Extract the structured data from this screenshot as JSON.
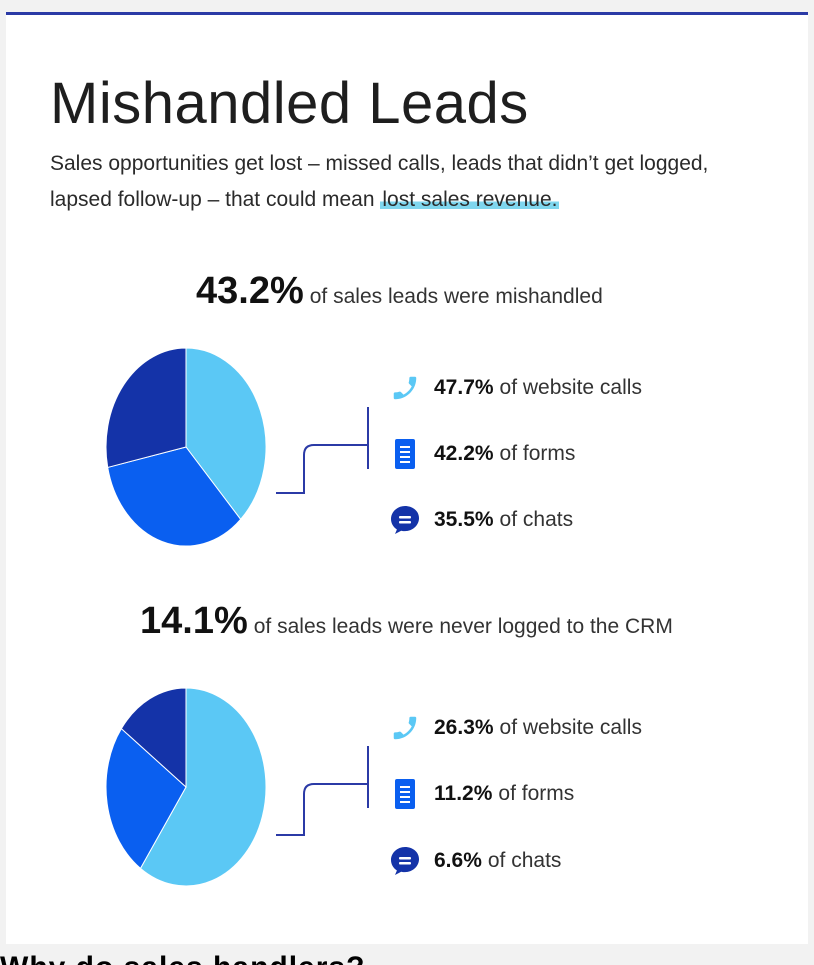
{
  "page": {
    "title": "Mishandled Leads",
    "subtitle_prefix": "Sales opportunities get lost – missed calls, leads that didn’t get logged, lapsed follow-up – that could mean ",
    "subtitle_highlight": "lost sales revenue.",
    "caption": "Why do sales handlers?",
    "colors": {
      "light_blue": "#5bc8f5",
      "mid_blue": "#0a5ff0",
      "dark_blue": "#1433a8",
      "accent_line": "#2b3aa6",
      "highlight": "#7fd6ee"
    }
  },
  "chart_data": [
    {
      "type": "pie",
      "headline_value": "43.2%",
      "headline_text": "of sales leads were mishandled",
      "slices": [
        {
          "value": 47.7,
          "color": "#5bc8f5"
        },
        {
          "value": 42.2,
          "color": "#0a5ff0"
        },
        {
          "value": 35.5,
          "color": "#1433a8"
        }
      ],
      "legend": [
        {
          "icon": "phone-icon",
          "value": "47.7%",
          "label": "of website calls"
        },
        {
          "icon": "form-icon",
          "value": "42.2%",
          "label": "of forms"
        },
        {
          "icon": "chat-icon",
          "value": "35.5%",
          "label": "of chats"
        }
      ]
    },
    {
      "type": "pie",
      "headline_value": "14.1%",
      "headline_text": "of sales leads were never logged to the CRM",
      "slices": [
        {
          "value": 26.3,
          "color": "#5bc8f5"
        },
        {
          "value": 11.2,
          "color": "#0a5ff0"
        },
        {
          "value": 6.6,
          "color": "#1433a8"
        }
      ],
      "legend": [
        {
          "icon": "phone-icon",
          "value": "26.3%",
          "label": "of website calls"
        },
        {
          "icon": "form-icon",
          "value": "11.2%",
          "label": "of forms"
        },
        {
          "icon": "chat-icon",
          "value": "6.6%",
          "label": "of chats"
        }
      ]
    }
  ]
}
